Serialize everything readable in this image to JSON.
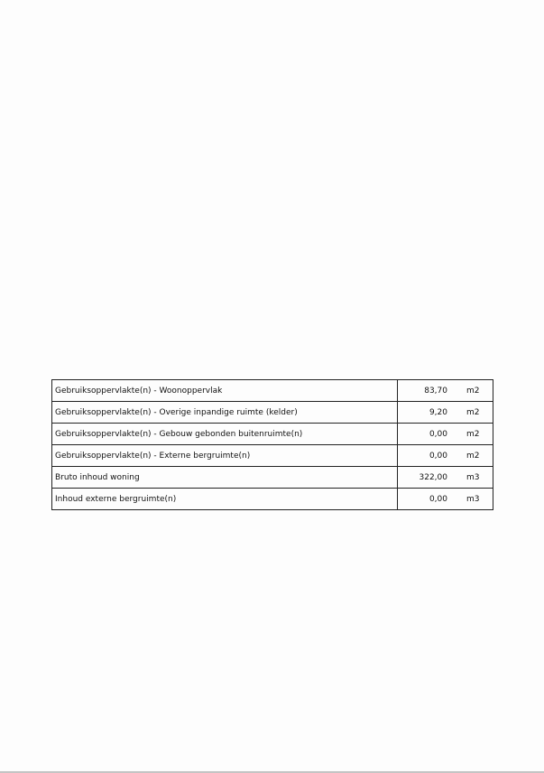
{
  "table": {
    "rows": [
      {
        "label": "Gebruiksoppervlakte(n) - Woonoppervlak",
        "value": "83,70",
        "unit": "m2"
      },
      {
        "label": "Gebruiksoppervlakte(n) - Overige inpandige ruimte (kelder)",
        "value": "9,20",
        "unit": "m2"
      },
      {
        "label": "Gebruiksoppervlakte(n) - Gebouw gebonden buitenruimte(n)",
        "value": "0,00",
        "unit": "m2"
      },
      {
        "label": "Gebruiksoppervlakte(n) - Externe bergruimte(n)",
        "value": "0,00",
        "unit": "m2"
      },
      {
        "label": "Bruto inhoud woning",
        "value": "322,00",
        "unit": "m3"
      },
      {
        "label": "Inhoud externe bergruimte(n)",
        "value": "0,00",
        "unit": "m3"
      }
    ]
  }
}
